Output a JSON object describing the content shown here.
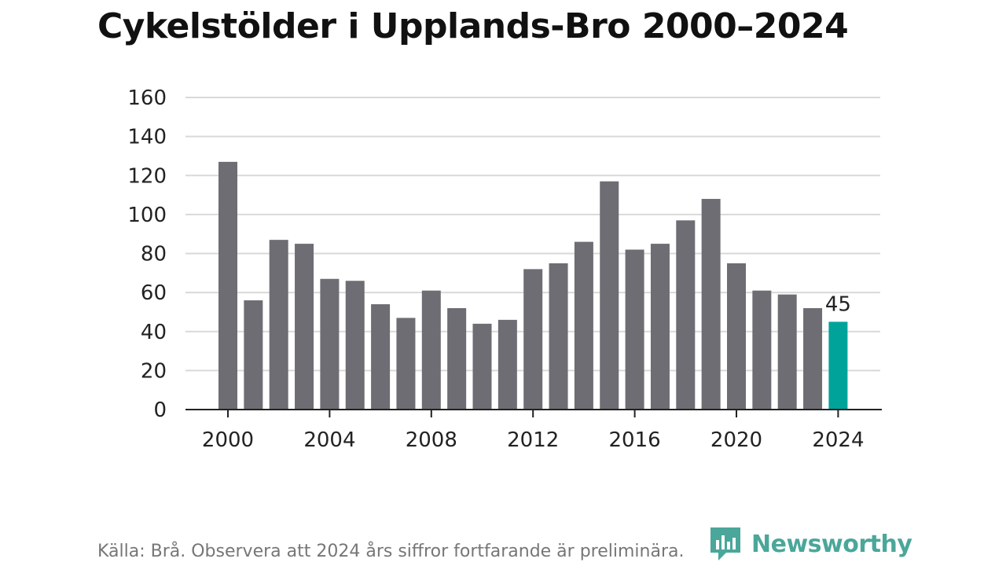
{
  "title": "Cykelstölder i Upplands-Bro 2000–2024",
  "source": "Källa: Brå. Observera att 2024 års siffror fortfarande är preliminära.",
  "brand": {
    "name": "Newsworthy",
    "color": "#4aa79a"
  },
  "colors": {
    "bar": "#6e6d73",
    "highlight": "#00a39a",
    "grid": "#d9d9d9",
    "axis": "#222222",
    "text": "#222222"
  },
  "chart_data": {
    "type": "bar",
    "x": [
      2000,
      2001,
      2002,
      2003,
      2004,
      2005,
      2006,
      2007,
      2008,
      2009,
      2010,
      2011,
      2012,
      2013,
      2014,
      2015,
      2016,
      2017,
      2018,
      2019,
      2020,
      2021,
      2022,
      2023,
      2024
    ],
    "values": [
      127,
      56,
      87,
      85,
      67,
      66,
      54,
      47,
      61,
      52,
      44,
      46,
      72,
      75,
      86,
      117,
      82,
      85,
      97,
      108,
      75,
      61,
      59,
      52,
      45
    ],
    "xticks": [
      "2000",
      "2004",
      "2008",
      "2012",
      "2016",
      "2020",
      "2024"
    ],
    "yticks": [
      0,
      20,
      40,
      60,
      80,
      100,
      120,
      140,
      160
    ],
    "ylim": [
      0,
      160
    ],
    "highlight_index": 24,
    "data_labels": [
      {
        "index": 24,
        "text": "45"
      }
    ],
    "grid": true,
    "legend": "none"
  }
}
